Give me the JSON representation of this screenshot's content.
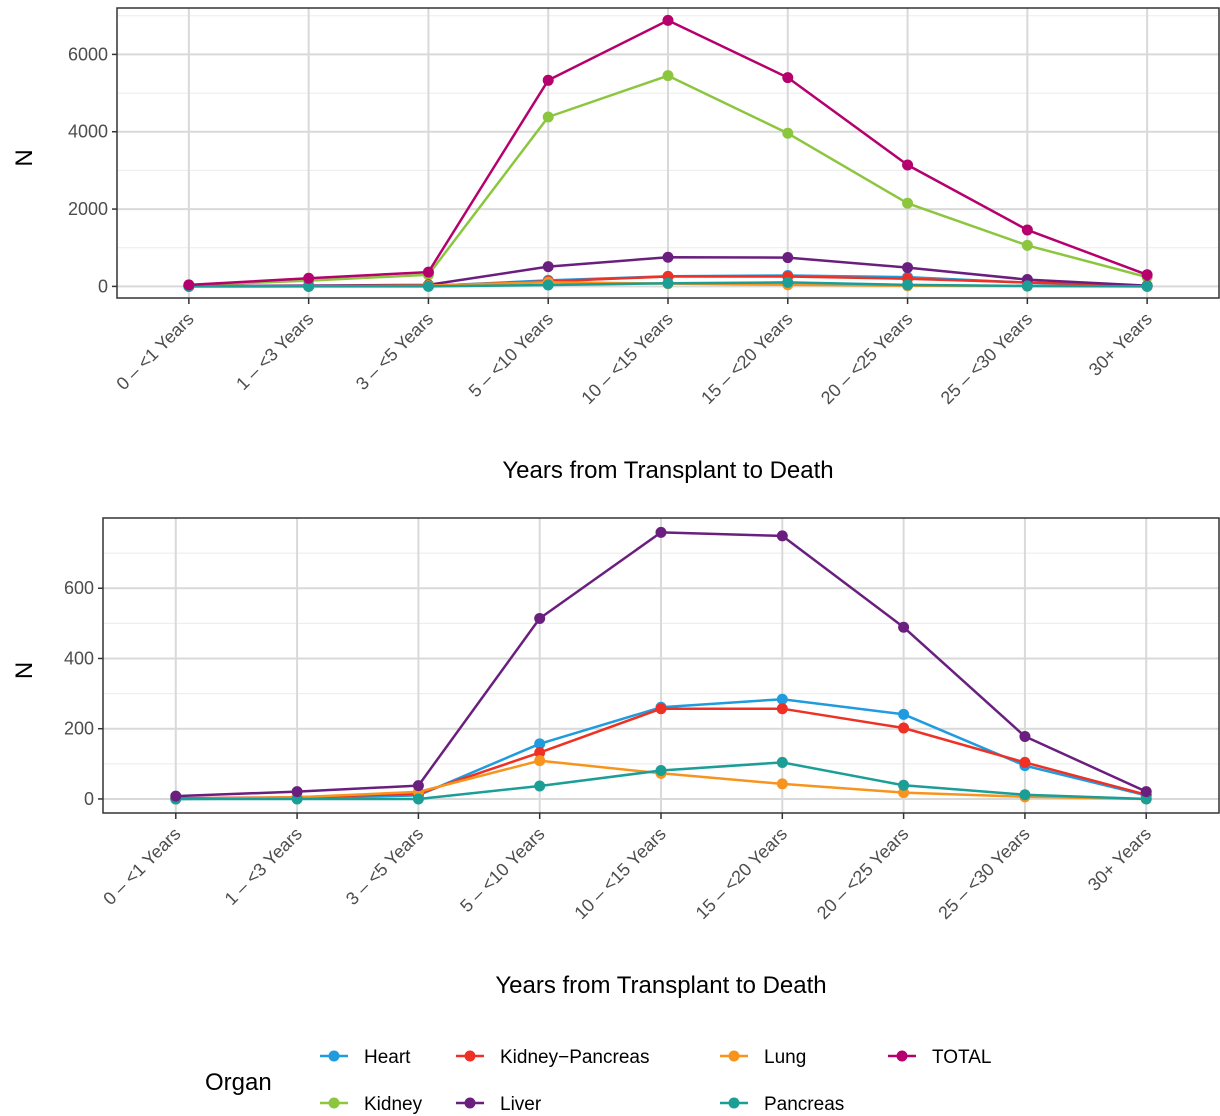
{
  "chart_data": [
    {
      "type": "line",
      "xlabel": "Years from Transplant to Death",
      "ylabel": "N",
      "ylim": [
        -300,
        7200
      ],
      "yticks": [
        0,
        2000,
        4000,
        6000
      ],
      "grid": true,
      "categories": [
        "0 – <1 Years",
        "1 – <3 Years",
        "3 – <5 Years",
        "5 – <10 Years",
        "10 – <15 Years",
        "15 – <20 Years",
        "20 – <25 Years",
        "25 – <30 Years",
        "30+ Years"
      ],
      "series": [
        {
          "name": "Heart",
          "color": "#1f9bde",
          "values": [
            0,
            2,
            10,
            155,
            260,
            283,
            240,
            95,
            10
          ]
        },
        {
          "name": "Kidney",
          "color": "#8cc63f",
          "values": [
            25,
            150,
            300,
            4380,
            5450,
            3960,
            2150,
            1060,
            240
          ]
        },
        {
          "name": "Kidney−Pancreas",
          "color": "#ee3124",
          "values": [
            2,
            5,
            15,
            130,
            255,
            255,
            200,
            100,
            12
          ]
        },
        {
          "name": "Liver",
          "color": "#6a1f7f",
          "values": [
            8,
            20,
            38,
            512,
            755,
            746,
            487,
            177,
            20
          ]
        },
        {
          "name": "Lung",
          "color": "#f7941d",
          "values": [
            0,
            5,
            20,
            108,
            72,
            42,
            18,
            6,
            0
          ]
        },
        {
          "name": "Pancreas",
          "color": "#1a9e96",
          "values": [
            0,
            0,
            0,
            37,
            80,
            104,
            39,
            12,
            0
          ]
        },
        {
          "name": "TOTAL",
          "color": "#b5006d",
          "values": [
            40,
            210,
            370,
            5330,
            6880,
            5400,
            3140,
            1460,
            300
          ]
        }
      ]
    },
    {
      "type": "line",
      "xlabel": "Years from Transplant to Death",
      "ylabel": "N",
      "ylim": [
        -40,
        800
      ],
      "yticks": [
        0,
        200,
        400,
        600
      ],
      "grid": true,
      "categories": [
        "0 – <1 Years",
        "1 – <3 Years",
        "3 – <5 Years",
        "5 – <10 Years",
        "10 – <15 Years",
        "15 – <20 Years",
        "20 – <25 Years",
        "25 – <30 Years",
        "30+ Years"
      ],
      "series": [
        {
          "name": "Heart",
          "color": "#1f9bde",
          "values": [
            0,
            2,
            10,
            157,
            261,
            284,
            241,
            95,
            10
          ]
        },
        {
          "name": "Kidney−Pancreas",
          "color": "#ee3124",
          "values": [
            2,
            5,
            15,
            132,
            257,
            257,
            202,
            104,
            12
          ]
        },
        {
          "name": "Lung",
          "color": "#f7941d",
          "values": [
            0,
            5,
            20,
            109,
            73,
            43,
            18,
            6,
            0
          ]
        },
        {
          "name": "Pancreas",
          "color": "#1a9e96",
          "values": [
            0,
            0,
            0,
            37,
            81,
            104,
            39,
            12,
            0
          ]
        },
        {
          "name": "Liver",
          "color": "#6a1f7f",
          "values": [
            8,
            21,
            38,
            514,
            759,
            749,
            489,
            178,
            21
          ]
        }
      ]
    }
  ],
  "legend": {
    "title": "Organ",
    "items": [
      {
        "name": "Heart",
        "color": "#1f9bde"
      },
      {
        "name": "Kidney",
        "color": "#8cc63f"
      },
      {
        "name": "Kidney−Pancreas",
        "color": "#ee3124"
      },
      {
        "name": "Liver",
        "color": "#6a1f7f"
      },
      {
        "name": "Lung",
        "color": "#f7941d"
      },
      {
        "name": "Pancreas",
        "color": "#1a9e96"
      },
      {
        "name": "TOTAL",
        "color": "#b5006d"
      }
    ]
  }
}
